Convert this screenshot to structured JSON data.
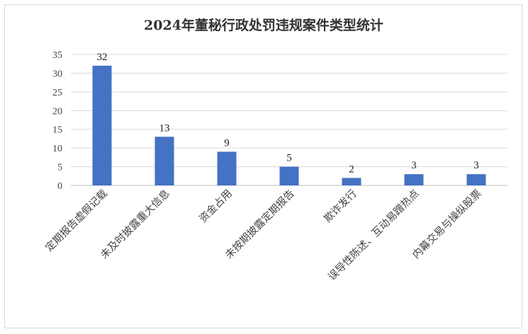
{
  "chart_data": {
    "type": "bar",
    "title": "2024年董秘行政处罚违规案件类型统计",
    "categories": [
      "定期报告虚假记载",
      "未及时披露重大信息",
      "资金占用",
      "未按期披露定期报告",
      "欺诈发行",
      "误导性陈述、互动易蹭热点",
      "内幕交易与操纵股票"
    ],
    "values": [
      32,
      13,
      9,
      5,
      2,
      3,
      3
    ],
    "ylim": [
      0,
      35
    ],
    "yticks": [
      0,
      5,
      10,
      15,
      20,
      25,
      30,
      35
    ],
    "xlabel": "",
    "ylabel": "",
    "grid": true,
    "legend": "none",
    "colors": {
      "bar": "#4472C4"
    }
  }
}
